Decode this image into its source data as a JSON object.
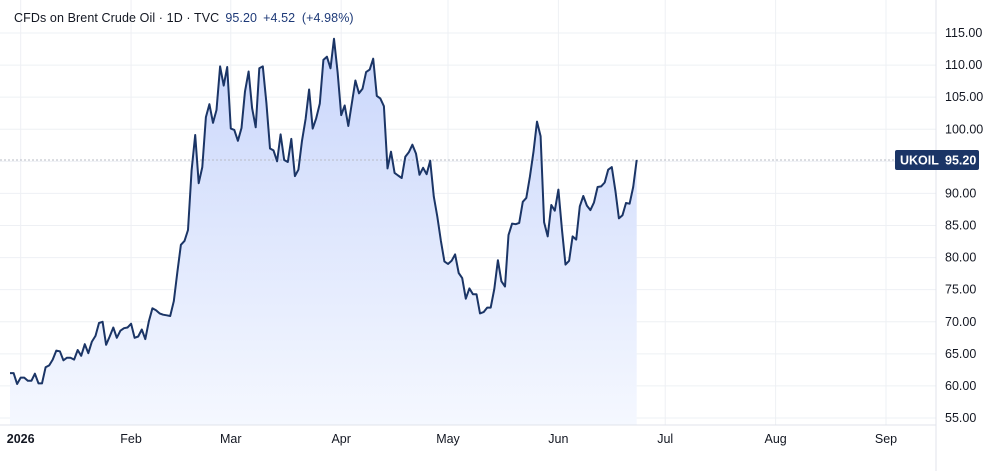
{
  "header": {
    "symbol_line": "CFDs on Brent Crude Oil · 1D · TVC",
    "last_price": "95.20",
    "change": "+4.52",
    "change_pct": "(+4.98%)"
  },
  "badge": {
    "symbol": "UKOIL",
    "price": "95.20"
  },
  "colors": {
    "line": "#1b3566",
    "fill_top": "#c9d6fb",
    "fill_bottom": "#f5f8ff",
    "grid": "#eef0f4",
    "badge": "#1b3566",
    "dashed_price_line": "#b8bcc6"
  },
  "chart_data": {
    "type": "area",
    "title": "",
    "xlabel": "",
    "ylabel": "",
    "ylim": [
      55,
      115
    ],
    "y_ticks": [
      "115.00",
      "110.00",
      "105.00",
      "100.00",
      "95.00",
      "90.00",
      "85.00",
      "80.00",
      "75.00",
      "70.00",
      "65.00",
      "60.00",
      "55.00"
    ],
    "x_ticks": [
      {
        "label": "2026",
        "day": 0
      },
      {
        "label": "Feb",
        "day": 31
      },
      {
        "label": "Mar",
        "day": 59
      },
      {
        "label": "Apr",
        "day": 90
      },
      {
        "label": "May",
        "day": 120
      },
      {
        "label": "Jun",
        "day": 151
      },
      {
        "label": "Jul",
        "day": 181
      },
      {
        "label": "Aug",
        "day": 212
      },
      {
        "label": "Sep",
        "day": 243
      }
    ],
    "x_range_days": [
      -3,
      243
    ],
    "grid": true,
    "current_price": 95.2,
    "series": [
      {
        "points": [
          [
            -3,
            62.0
          ],
          [
            -2,
            62.0
          ],
          [
            -1,
            60.3
          ],
          [
            0,
            61.3
          ],
          [
            1,
            61.3
          ],
          [
            2,
            60.8
          ],
          [
            3,
            60.8
          ],
          [
            4,
            61.9
          ],
          [
            5,
            60.4
          ],
          [
            6,
            60.4
          ],
          [
            7,
            62.9
          ],
          [
            8,
            63.2
          ],
          [
            9,
            64.1
          ],
          [
            10,
            65.5
          ],
          [
            11,
            65.4
          ],
          [
            12,
            64.0
          ],
          [
            13,
            64.4
          ],
          [
            14,
            64.4
          ],
          [
            15,
            64.1
          ],
          [
            16,
            65.6
          ],
          [
            17,
            64.7
          ],
          [
            18,
            66.5
          ],
          [
            19,
            65.1
          ],
          [
            20,
            66.9
          ],
          [
            21,
            67.8
          ],
          [
            22,
            69.8
          ],
          [
            23,
            70.0
          ],
          [
            24,
            66.4
          ],
          [
            25,
            67.7
          ],
          [
            26,
            69.1
          ],
          [
            27,
            67.5
          ],
          [
            28,
            68.6
          ],
          [
            29,
            69.0
          ],
          [
            30,
            69.1
          ],
          [
            31,
            69.7
          ],
          [
            32,
            67.5
          ],
          [
            33,
            67.7
          ],
          [
            34,
            68.8
          ],
          [
            35,
            67.3
          ],
          [
            36,
            70.1
          ],
          [
            37,
            72.1
          ],
          [
            38,
            71.8
          ],
          [
            39,
            71.3
          ],
          [
            40,
            71.1
          ],
          [
            41,
            71.0
          ],
          [
            42,
            70.9
          ],
          [
            43,
            73.2
          ],
          [
            44,
            77.8
          ],
          [
            45,
            82.0
          ],
          [
            46,
            82.6
          ],
          [
            47,
            84.3
          ],
          [
            48,
            93.6
          ],
          [
            49,
            99.1
          ],
          [
            50,
            91.6
          ],
          [
            51,
            94.1
          ],
          [
            52,
            101.9
          ],
          [
            53,
            103.9
          ],
          [
            54,
            101.0
          ],
          [
            55,
            103.0
          ],
          [
            56,
            109.8
          ],
          [
            57,
            106.8
          ],
          [
            58,
            109.7
          ],
          [
            59,
            100.1
          ],
          [
            60,
            99.9
          ],
          [
            61,
            98.2
          ],
          [
            62,
            100.2
          ],
          [
            63,
            105.9
          ],
          [
            64,
            109.0
          ],
          [
            65,
            103.3
          ],
          [
            66,
            100.3
          ],
          [
            67,
            109.5
          ],
          [
            68,
            109.8
          ],
          [
            69,
            104.1
          ],
          [
            70,
            97.0
          ],
          [
            71,
            96.7
          ],
          [
            72,
            95.0
          ],
          [
            73,
            99.2
          ],
          [
            74,
            95.2
          ],
          [
            75,
            94.9
          ],
          [
            76,
            98.5
          ],
          [
            77,
            92.7
          ],
          [
            78,
            93.7
          ],
          [
            79,
            98.2
          ],
          [
            80,
            101.6
          ],
          [
            81,
            106.2
          ],
          [
            82,
            100.1
          ],
          [
            83,
            101.7
          ],
          [
            84,
            104.0
          ],
          [
            85,
            110.8
          ],
          [
            86,
            111.3
          ],
          [
            87,
            109.5
          ],
          [
            88,
            114.1
          ],
          [
            89,
            108.9
          ],
          [
            90,
            102.2
          ],
          [
            91,
            103.7
          ],
          [
            92,
            100.5
          ],
          [
            93,
            104.1
          ],
          [
            94,
            107.6
          ],
          [
            95,
            105.6
          ],
          [
            96,
            106.3
          ],
          [
            97,
            108.9
          ],
          [
            98,
            109.3
          ],
          [
            99,
            111.0
          ],
          [
            100,
            105.2
          ],
          [
            101,
            104.8
          ],
          [
            102,
            103.6
          ],
          [
            103,
            93.9
          ],
          [
            104,
            96.5
          ],
          [
            105,
            93.2
          ],
          [
            106,
            92.8
          ],
          [
            107,
            92.4
          ],
          [
            108,
            95.7
          ],
          [
            109,
            96.4
          ],
          [
            110,
            97.6
          ],
          [
            111,
            96.2
          ],
          [
            112,
            92.9
          ],
          [
            113,
            94.0
          ],
          [
            114,
            93.0
          ],
          [
            115,
            95.1
          ],
          [
            116,
            89.5
          ],
          [
            117,
            86.4
          ],
          [
            118,
            82.6
          ],
          [
            119,
            79.4
          ],
          [
            120,
            79.0
          ],
          [
            121,
            79.5
          ],
          [
            122,
            80.5
          ],
          [
            123,
            77.6
          ],
          [
            124,
            76.8
          ],
          [
            125,
            73.6
          ],
          [
            126,
            75.2
          ],
          [
            127,
            74.3
          ],
          [
            128,
            74.3
          ],
          [
            129,
            71.3
          ],
          [
            130,
            71.5
          ],
          [
            131,
            72.2
          ],
          [
            132,
            72.2
          ],
          [
            133,
            75.1
          ],
          [
            134,
            79.6
          ],
          [
            135,
            76.3
          ],
          [
            136,
            75.5
          ],
          [
            137,
            83.5
          ],
          [
            138,
            85.3
          ],
          [
            139,
            85.2
          ],
          [
            140,
            85.4
          ],
          [
            141,
            88.7
          ],
          [
            142,
            89.3
          ],
          [
            143,
            92.6
          ],
          [
            144,
            96.5
          ],
          [
            145,
            101.2
          ],
          [
            146,
            98.9
          ],
          [
            147,
            85.5
          ],
          [
            148,
            83.3
          ],
          [
            149,
            88.2
          ],
          [
            150,
            87.3
          ],
          [
            151,
            90.6
          ],
          [
            152,
            84.3
          ],
          [
            153,
            78.9
          ],
          [
            154,
            79.5
          ],
          [
            155,
            83.3
          ],
          [
            156,
            82.8
          ],
          [
            157,
            88.0
          ],
          [
            158,
            89.6
          ],
          [
            159,
            88.1
          ],
          [
            160,
            87.4
          ],
          [
            161,
            88.6
          ],
          [
            162,
            91.0
          ],
          [
            163,
            91.1
          ],
          [
            164,
            91.7
          ],
          [
            165,
            93.7
          ],
          [
            166,
            94.1
          ],
          [
            167,
            90.4
          ],
          [
            168,
            86.1
          ],
          [
            169,
            86.6
          ],
          [
            170,
            88.5
          ],
          [
            171,
            88.4
          ],
          [
            172,
            91.0
          ],
          [
            173,
            95.2
          ]
        ]
      }
    ]
  }
}
